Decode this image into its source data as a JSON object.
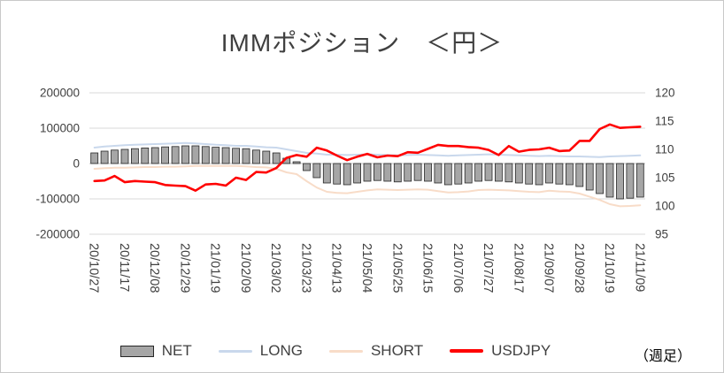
{
  "title": "IMMポジション　＜円＞",
  "legend": {
    "net": "NET",
    "long": "LONG",
    "short": "SHORT",
    "usdjpy": "USDJPY",
    "note": "（週足）"
  },
  "colors": {
    "net_fill": "#a6a6a6",
    "net_border": "#262626",
    "long": "#c9d8ec",
    "short": "#f8dcc8",
    "usdjpy": "#ff0000",
    "grid": "#d9d9d9",
    "zero_line": "#bfbfbf",
    "axis_text": "#404040"
  },
  "chart_data": {
    "type": "combo",
    "title": "IMMポジション　＜円＞",
    "x_tick_step": 3,
    "left_axis": {
      "min": -200000,
      "max": 200000,
      "ticks": [
        200000,
        100000,
        0,
        -100000,
        -200000
      ]
    },
    "right_axis": {
      "min": 95,
      "max": 120,
      "ticks": [
        120,
        115,
        110,
        105,
        100,
        95
      ]
    },
    "x": [
      "20/10/27",
      "20/11/03",
      "20/11/10",
      "20/11/17",
      "20/11/24",
      "20/12/01",
      "20/12/08",
      "20/12/15",
      "20/12/22",
      "20/12/29",
      "21/01/05",
      "21/01/12",
      "21/01/19",
      "21/01/26",
      "21/02/02",
      "21/02/09",
      "21/02/16",
      "21/02/23",
      "21/03/02",
      "21/03/09",
      "21/03/16",
      "21/03/23",
      "21/03/30",
      "21/04/06",
      "21/04/13",
      "21/04/20",
      "21/04/27",
      "21/05/04",
      "21/05/11",
      "21/05/18",
      "21/05/25",
      "21/06/01",
      "21/06/08",
      "21/06/15",
      "21/06/22",
      "21/06/29",
      "21/07/06",
      "21/07/13",
      "21/07/20",
      "21/07/27",
      "21/08/03",
      "21/08/10",
      "21/08/17",
      "21/08/24",
      "21/08/31",
      "21/09/07",
      "21/09/14",
      "21/09/21",
      "21/09/28",
      "21/10/05",
      "21/10/12",
      "21/10/19",
      "21/10/26",
      "21/11/02",
      "21/11/09"
    ],
    "series": [
      {
        "name": "NET",
        "type": "bar",
        "axis": "left",
        "values": [
          30000,
          35000,
          38000,
          40000,
          42000,
          44000,
          45000,
          47000,
          48000,
          50000,
          50000,
          48000,
          46000,
          45000,
          43000,
          42000,
          38000,
          35000,
          30000,
          15000,
          5000,
          -20000,
          -40000,
          -55000,
          -58000,
          -60000,
          -55000,
          -50000,
          -48000,
          -50000,
          -52000,
          -50000,
          -48000,
          -50000,
          -55000,
          -60000,
          -58000,
          -55000,
          -50000,
          -48000,
          -50000,
          -52000,
          -55000,
          -58000,
          -60000,
          -55000,
          -58000,
          -60000,
          -65000,
          -75000,
          -85000,
          -95000,
          -100000,
          -98000,
          -95000
        ]
      },
      {
        "name": "LONG",
        "type": "line",
        "axis": "left",
        "values": [
          45000,
          48000,
          50000,
          52000,
          53000,
          54000,
          55000,
          56000,
          57000,
          58000,
          57000,
          55000,
          53000,
          52000,
          50000,
          50000,
          48000,
          46000,
          45000,
          40000,
          35000,
          30000,
          28000,
          25000,
          25000,
          24000,
          25000,
          26000,
          25000,
          24000,
          23000,
          24000,
          25000,
          24000,
          23000,
          22000,
          23000,
          24000,
          25000,
          26000,
          25000,
          24000,
          23000,
          22000,
          21000,
          22000,
          21000,
          20000,
          20000,
          19000,
          18000,
          20000,
          21000,
          22000,
          23000
        ]
      },
      {
        "name": "SHORT",
        "type": "line",
        "axis": "left",
        "values": [
          -15000,
          -13000,
          -12000,
          -12000,
          -11000,
          -10000,
          -10000,
          -9000,
          -9000,
          -8000,
          -7000,
          -7000,
          -7000,
          -7000,
          -7000,
          -8000,
          -10000,
          -11000,
          -15000,
          -25000,
          -30000,
          -50000,
          -68000,
          -80000,
          -83000,
          -84000,
          -80000,
          -76000,
          -73000,
          -74000,
          -75000,
          -74000,
          -73000,
          -74000,
          -78000,
          -82000,
          -81000,
          -79000,
          -75000,
          -74000,
          -75000,
          -76000,
          -78000,
          -80000,
          -81000,
          -77000,
          -79000,
          -80000,
          -85000,
          -94000,
          -103000,
          -115000,
          -121000,
          -120000,
          -118000
        ]
      },
      {
        "name": "USDJPY",
        "type": "line",
        "axis": "right",
        "values": [
          104.4,
          104.5,
          105.3,
          104.2,
          104.4,
          104.3,
          104.2,
          103.7,
          103.6,
          103.5,
          102.7,
          103.8,
          103.9,
          103.6,
          105.0,
          104.6,
          106.0,
          105.9,
          106.7,
          108.5,
          109.0,
          108.7,
          110.3,
          109.8,
          108.9,
          108.1,
          108.7,
          109.2,
          108.6,
          108.9,
          108.8,
          109.5,
          109.4,
          110.1,
          110.8,
          110.6,
          110.6,
          110.4,
          110.3,
          109.9,
          109.0,
          110.6,
          109.6,
          109.9,
          110.0,
          110.3,
          109.7,
          109.8,
          111.5,
          111.5,
          113.6,
          114.4,
          113.8,
          113.9,
          114.0
        ]
      }
    ]
  }
}
